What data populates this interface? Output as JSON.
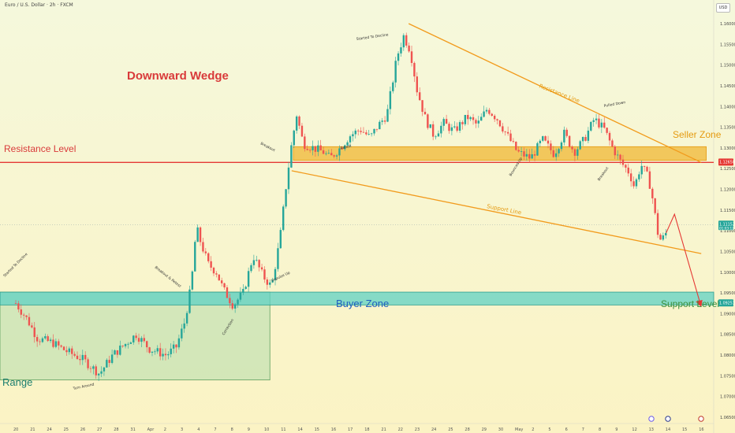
{
  "header": {
    "title": "Euro / U.S. Dollar · 2h · FXCM",
    "currency_button": "USD"
  },
  "colors": {
    "background_top": "#f5f8dc",
    "background_bottom": "#fbf3c4",
    "candle_up": "#26a69a",
    "candle_down": "#ef5350",
    "resistance_level": "#e53935",
    "seller_zone": "#f0b429",
    "buyer_zone": "#5fd1c4",
    "range_box": "#a5d6a7",
    "wedge_lines": "#f29b1c",
    "arrow": "#e53935"
  },
  "chart_data": {
    "type": "candlestick",
    "symbol": "EURUSD",
    "timeframe": "2h",
    "ylim": [
      1.062,
      1.165
    ],
    "y_ticks": [
      "1.16000",
      "1.15500",
      "1.15000",
      "1.14500",
      "1.14000",
      "1.13500",
      "1.13000",
      "1.12500",
      "1.12000",
      "1.11500",
      "1.11000",
      "1.10500",
      "1.10000",
      "1.09500",
      "1.09000",
      "1.08500",
      "1.08000",
      "1.07500",
      "1.07000",
      "1.06500"
    ],
    "x_ticks": [
      {
        "label": "20",
        "x": 0
      },
      {
        "label": "21",
        "x": 1
      },
      {
        "label": "24",
        "x": 2
      },
      {
        "label": "25",
        "x": 3
      },
      {
        "label": "26",
        "x": 4
      },
      {
        "label": "27",
        "x": 5
      },
      {
        "label": "28",
        "x": 6
      },
      {
        "label": "31",
        "x": 7
      },
      {
        "label": "Apr",
        "x": 8
      },
      {
        "label": "2",
        "x": 9
      },
      {
        "label": "3",
        "x": 10
      },
      {
        "label": "4",
        "x": 11
      },
      {
        "label": "7",
        "x": 12
      },
      {
        "label": "8",
        "x": 13
      },
      {
        "label": "9",
        "x": 14
      },
      {
        "label": "10",
        "x": 15
      },
      {
        "label": "11",
        "x": 16
      },
      {
        "label": "14",
        "x": 17
      },
      {
        "label": "15",
        "x": 18
      },
      {
        "label": "16",
        "x": 19
      },
      {
        "label": "17",
        "x": 20
      },
      {
        "label": "18",
        "x": 21
      },
      {
        "label": "21",
        "x": 22
      },
      {
        "label": "22",
        "x": 23
      },
      {
        "label": "23",
        "x": 24
      },
      {
        "label": "24",
        "x": 25
      },
      {
        "label": "25",
        "x": 26
      },
      {
        "label": "28",
        "x": 27
      },
      {
        "label": "29",
        "x": 28
      },
      {
        "label": "30",
        "x": 29
      },
      {
        "label": "May",
        "x": 30
      },
      {
        "label": "2",
        "x": 31
      },
      {
        "label": "5",
        "x": 32
      },
      {
        "label": "6",
        "x": 33
      },
      {
        "label": "7",
        "x": 34
      },
      {
        "label": "8",
        "x": 35
      },
      {
        "label": "9",
        "x": 36
      },
      {
        "label": "12",
        "x": 37
      },
      {
        "label": "13",
        "x": 38
      },
      {
        "label": "14",
        "x": 39
      },
      {
        "label": "15",
        "x": 40
      },
      {
        "label": "16",
        "x": 41
      }
    ],
    "price_path": [
      [
        0.0,
        1.0925
      ],
      [
        0.7,
        1.0885
      ],
      [
        1.3,
        1.084
      ],
      [
        2.2,
        1.083
      ],
      [
        3.0,
        1.081
      ],
      [
        4.0,
        1.079
      ],
      [
        5.0,
        1.0755
      ],
      [
        5.8,
        1.08
      ],
      [
        6.5,
        1.0825
      ],
      [
        7.2,
        1.085
      ],
      [
        8.0,
        1.0815
      ],
      [
        9.0,
        1.08
      ],
      [
        9.6,
        1.082
      ],
      [
        10.1,
        1.088
      ],
      [
        10.5,
        1.097
      ],
      [
        10.8,
        1.111
      ],
      [
        11.0,
        1.108
      ],
      [
        11.5,
        1.102
      ],
      [
        12.0,
        1.1
      ],
      [
        12.4,
        1.096
      ],
      [
        13.0,
        1.092
      ],
      [
        13.6,
        1.095
      ],
      [
        14.2,
        1.104
      ],
      [
        14.8,
        1.099
      ],
      [
        15.3,
        1.0965
      ],
      [
        15.8,
        1.108
      ],
      [
        16.2,
        1.122
      ],
      [
        16.5,
        1.131
      ],
      [
        16.8,
        1.138
      ],
      [
        17.2,
        1.131
      ],
      [
        17.8,
        1.13
      ],
      [
        18.4,
        1.129
      ],
      [
        18.8,
        1.1275
      ],
      [
        19.4,
        1.13
      ],
      [
        20.0,
        1.133
      ],
      [
        20.6,
        1.1345
      ],
      [
        21.2,
        1.1325
      ],
      [
        21.6,
        1.135
      ],
      [
        22.2,
        1.138
      ],
      [
        22.8,
        1.152
      ],
      [
        23.2,
        1.157
      ],
      [
        23.6,
        1.1535
      ],
      [
        24.0,
        1.144
      ],
      [
        24.5,
        1.137
      ],
      [
        25.0,
        1.133
      ],
      [
        25.6,
        1.136
      ],
      [
        26.2,
        1.134
      ],
      [
        27.0,
        1.1375
      ],
      [
        27.6,
        1.1355
      ],
      [
        28.2,
        1.1395
      ],
      [
        28.8,
        1.137
      ],
      [
        29.4,
        1.133
      ],
      [
        30.0,
        1.129
      ],
      [
        30.8,
        1.1275
      ],
      [
        31.5,
        1.132
      ],
      [
        32.2,
        1.1285
      ],
      [
        32.8,
        1.1335
      ],
      [
        33.4,
        1.129
      ],
      [
        34.0,
        1.132
      ],
      [
        34.6,
        1.137
      ],
      [
        35.2,
        1.1345
      ],
      [
        35.7,
        1.13
      ],
      [
        36.2,
        1.1265
      ],
      [
        36.7,
        1.124
      ],
      [
        37.0,
        1.1205
      ],
      [
        37.4,
        1.126
      ],
      [
        37.8,
        1.123
      ],
      [
        38.0,
        1.12
      ],
      [
        38.4,
        1.1095
      ],
      [
        38.6,
        1.1075
      ],
      [
        38.9,
        1.1095
      ]
    ],
    "levels": {
      "resistance_level": 1.1265,
      "seller_zone": [
        1.127,
        1.1303
      ],
      "buyer_zone": [
        1.0921,
        1.0952
      ],
      "current_price": 1.1115,
      "buyer_tag": 1.0925,
      "seller_tag": 1.1265
    },
    "price_tags": {
      "current": "1.11152",
      "countdown": "01:03:12",
      "buyer": "1.09251",
      "seller": "1.12650"
    },
    "wedge": {
      "resistance_line": [
        [
          23.5,
          1.16
        ],
        [
          41.0,
          1.1265
        ]
      ],
      "support_line": [
        [
          16.5,
          1.1245
        ],
        [
          41.0,
          1.1045
        ]
      ]
    },
    "annotations": {
      "title": "Downward Wedge",
      "resistance_level": "Resistance Level",
      "seller_zone": "Seller Zone",
      "buyer_zone": "Buyer Zone",
      "support_level": "Support Level",
      "range": "Range",
      "resistance_line": "Resistance Line",
      "support_line": "Support Line",
      "small_notes": [
        "Started To Decline",
        "Breakout & Retest",
        "Turn Around",
        "Correction",
        "Impulse Up",
        "Breakout",
        "Retest",
        "Started To Decline",
        "Bounced Up",
        "Breakout",
        "Pulled Down"
      ]
    },
    "grid": false,
    "legend": "none"
  }
}
